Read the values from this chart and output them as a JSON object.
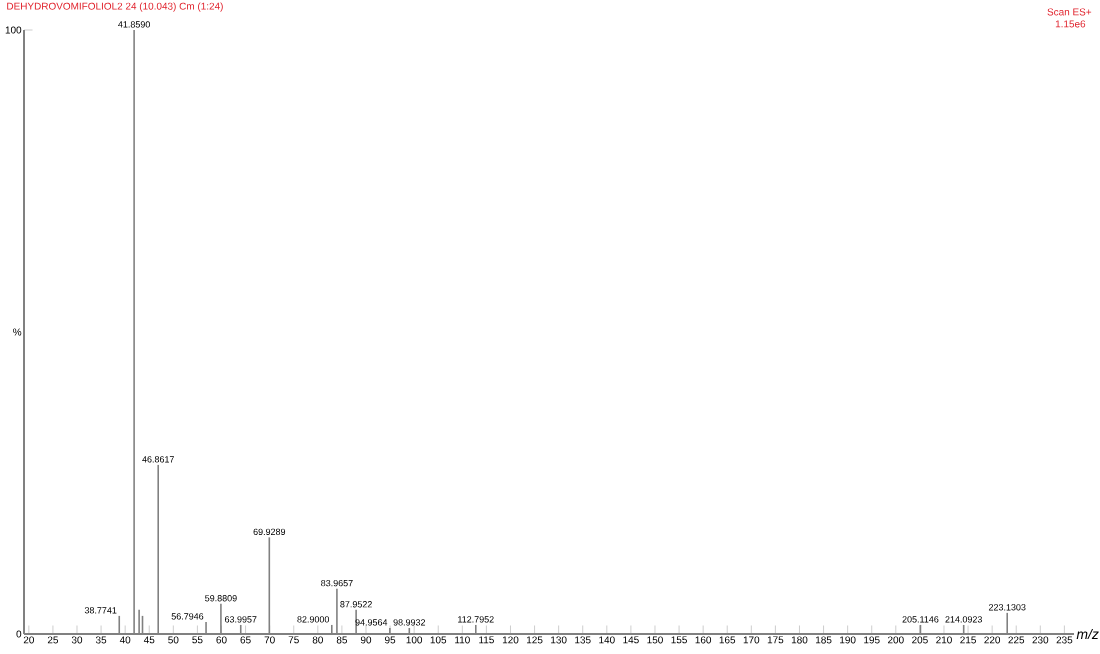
{
  "chart_data": {
    "type": "bar",
    "title": "DEHYDROVOMIFOLIOL2 24 (10.043) Cm (1:24)",
    "xlabel": "m/z",
    "ylabel": "%",
    "x": [
      38.7741,
      41.859,
      42.9,
      43.6,
      46.8617,
      56.7946,
      59.8809,
      63.9957,
      69.9289,
      82.9,
      83.9657,
      87.9522,
      94.9564,
      98.9932,
      112.7952,
      205.1146,
      214.0923,
      223.1303
    ],
    "values": [
      3,
      100,
      4,
      3,
      28,
      2,
      5,
      1.5,
      16,
      1.5,
      7.5,
      4,
      1,
      1,
      1.5,
      1.5,
      1.5,
      3.5
    ],
    "annotations": [
      "Scan ES+",
      "1.15e6",
      {
        "text": "38.7741",
        "x": 38.7741,
        "y": 3
      },
      {
        "text": "41.8590",
        "x": 41.859,
        "y": 100
      },
      {
        "text": "46.8617",
        "x": 46.8617,
        "y": 28
      },
      {
        "text": "56.7946",
        "x": 56.7946,
        "y": 2
      },
      {
        "text": "59.8809",
        "x": 59.8809,
        "y": 5
      },
      {
        "text": "63.9957",
        "x": 63.9957,
        "y": 1.5
      },
      {
        "text": "69.9289",
        "x": 69.9289,
        "y": 16
      },
      {
        "text": "82.9000",
        "x": 82.9,
        "y": 1.5
      },
      {
        "text": "83.9657",
        "x": 83.9657,
        "y": 7.5
      },
      {
        "text": "87.9522",
        "x": 87.9522,
        "y": 4
      },
      {
        "text": "94.9564",
        "x": 94.9564,
        "y": 1
      },
      {
        "text": "98.9932",
        "x": 98.9932,
        "y": 1
      },
      {
        "text": "112.7952",
        "x": 112.7952,
        "y": 1.5
      },
      {
        "text": "205.1146",
        "x": 205.1146,
        "y": 1.5
      },
      {
        "text": "214.0923",
        "x": 214.0923,
        "y": 1.5
      },
      {
        "text": "223.1303",
        "x": 223.1303,
        "y": 3.5
      }
    ],
    "color": "#808080",
    "xlim": [
      19,
      237
    ],
    "xticks": [
      20,
      25,
      30,
      35,
      40,
      45,
      50,
      55,
      60,
      65,
      70,
      75,
      80,
      85,
      90,
      95,
      100,
      105,
      110,
      115,
      120,
      125,
      130,
      135,
      140,
      145,
      150,
      155,
      160,
      165,
      170,
      175,
      180,
      185,
      190,
      195,
      200,
      205,
      210,
      215,
      220,
      225,
      230,
      235
    ],
    "ylim": [
      0,
      100
    ],
    "yticks": [
      0,
      100
    ]
  }
}
